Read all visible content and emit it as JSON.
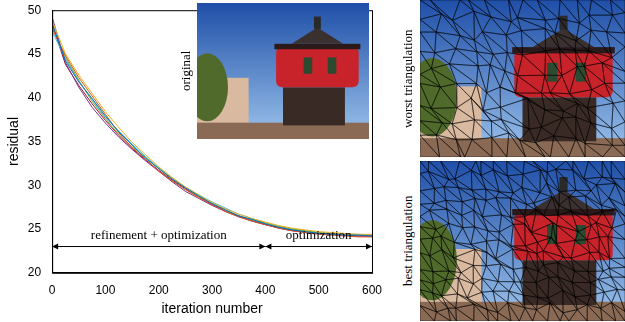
{
  "chart_data": {
    "type": "line",
    "x_label": "iteration number",
    "y_label": "residual",
    "x": [
      0,
      25,
      50,
      75,
      100,
      125,
      150,
      175,
      200,
      225,
      250,
      275,
      300,
      325,
      350,
      375,
      400,
      425,
      450,
      475,
      500,
      525,
      550,
      575,
      600
    ],
    "series": [
      {
        "color": "#0072bd",
        "values": [
          48.5,
          44.2,
          41.8,
          39.9,
          37.9,
          36.1,
          34.6,
          33.1,
          31.9,
          30.7,
          29.7,
          28.8,
          27.9,
          27.2,
          26.5,
          26.1,
          25.6,
          25.2,
          24.9,
          24.7,
          24.5,
          24.4,
          24.3,
          24.3,
          24.2
        ]
      },
      {
        "color": "#d95319",
        "values": [
          47.9,
          44.8,
          42.3,
          40.2,
          38.1,
          36.0,
          34.3,
          33.0,
          31.6,
          30.5,
          29.5,
          28.6,
          27.8,
          27.0,
          26.4,
          25.9,
          25.5,
          25.1,
          24.8,
          24.6,
          24.4,
          24.3,
          24.2,
          24.1,
          24.1
        ]
      },
      {
        "color": "#edb120",
        "values": [
          48.8,
          45.0,
          42.6,
          40.5,
          38.4,
          36.6,
          34.9,
          33.5,
          32.1,
          30.9,
          29.8,
          28.9,
          28.0,
          27.3,
          26.7,
          26.2,
          25.8,
          25.4,
          25.1,
          24.9,
          24.7,
          24.6,
          24.5,
          24.4,
          24.4
        ]
      },
      {
        "color": "#7e2f8e",
        "values": [
          49.2,
          44.0,
          41.2,
          38.9,
          37.1,
          35.5,
          34.1,
          32.8,
          31.6,
          30.4,
          29.3,
          28.5,
          27.7,
          27.0,
          26.4,
          25.9,
          25.5,
          25.1,
          24.8,
          24.6,
          24.5,
          24.4,
          24.3,
          24.2,
          24.2
        ]
      },
      {
        "color": "#77ac30",
        "values": [
          48.1,
          44.6,
          42.0,
          39.6,
          37.6,
          35.8,
          34.4,
          33.2,
          31.9,
          30.8,
          29.7,
          28.7,
          27.9,
          27.1,
          26.5,
          26.0,
          25.7,
          25.3,
          25.0,
          24.8,
          24.6,
          24.5,
          24.4,
          24.3,
          24.3
        ]
      },
      {
        "color": "#4dbeee",
        "values": [
          47.6,
          44.4,
          41.9,
          39.8,
          37.7,
          36.2,
          34.7,
          33.3,
          32.0,
          30.8,
          29.8,
          28.9,
          28.1,
          27.4,
          26.7,
          26.2,
          25.7,
          25.3,
          25.0,
          24.8,
          24.6,
          24.5,
          24.4,
          24.4,
          24.3
        ]
      },
      {
        "color": "#a2142f",
        "values": [
          48.4,
          43.8,
          41.4,
          39.3,
          37.4,
          35.7,
          34.2,
          32.9,
          31.7,
          30.6,
          29.6,
          28.7,
          27.8,
          27.1,
          26.5,
          26.0,
          25.5,
          25.2,
          24.9,
          24.7,
          24.5,
          24.4,
          24.3,
          24.2,
          24.2
        ]
      }
    ],
    "xlim": [
      0,
      600
    ],
    "xticks": [
      0,
      100,
      200,
      300,
      400,
      500,
      600
    ],
    "ylim": [
      20,
      50
    ],
    "yticks": [
      20,
      25,
      30,
      35,
      40,
      45,
      50
    ],
    "grid": false,
    "annotations": [
      {
        "text": "refinement + optimization",
        "x": [
          0,
          400
        ],
        "y": 23
      },
      {
        "text": "optimization",
        "x": [
          400,
          600
        ],
        "y": 23
      }
    ]
  },
  "panels": [
    {
      "label": "original"
    },
    {
      "label": "worst triangulation"
    },
    {
      "label": "best triangulation"
    }
  ]
}
